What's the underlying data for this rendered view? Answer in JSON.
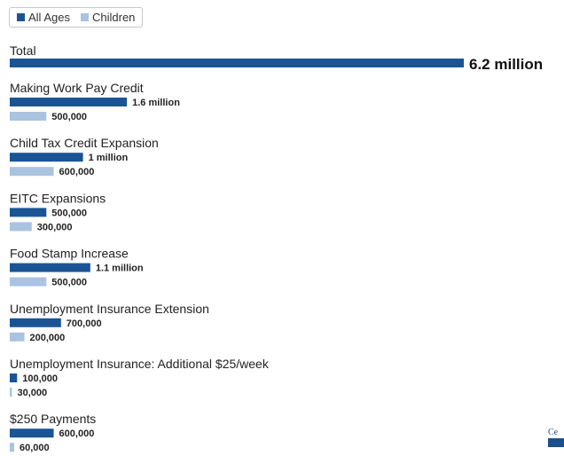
{
  "colors": {
    "all_ages": "#1a5494",
    "children": "#a9c3e1"
  },
  "legend": {
    "all_ages_label": "All Ages",
    "children_label": "Children"
  },
  "logo": {
    "text": "Ce"
  },
  "chart_data": {
    "type": "bar",
    "orientation": "horizontal",
    "title": "",
    "xlabel": "",
    "ylabel": "",
    "legend_placement": "top-left",
    "grid": false,
    "series": [
      {
        "name": "All Ages",
        "key": "all",
        "color": "#1a5494"
      },
      {
        "name": "Children",
        "key": "kids",
        "color": "#a9c3e1"
      }
    ],
    "total": {
      "category": "Total",
      "value": 6200000,
      "label": "6.2 million"
    },
    "categories": [
      {
        "name": "Making Work Pay Credit",
        "all": 1600000,
        "all_label": "1.6 million",
        "kids": 500000,
        "kids_label": "500,000"
      },
      {
        "name": "Child Tax Credit Expansion",
        "all": 1000000,
        "all_label": "1 million",
        "kids": 600000,
        "kids_label": "600,000"
      },
      {
        "name": "EITC Expansions",
        "all": 500000,
        "all_label": "500,000",
        "kids": 300000,
        "kids_label": "300,000"
      },
      {
        "name": "Food Stamp Increase",
        "all": 1100000,
        "all_label": "1.1 million",
        "kids": 500000,
        "kids_label": "500,000"
      },
      {
        "name": "Unemployment Insurance Extension",
        "all": 700000,
        "all_label": "700,000",
        "kids": 200000,
        "kids_label": "200,000"
      },
      {
        "name": "Unemployment Insurance: Additional $25/week",
        "all": 100000,
        "all_label": "100,000",
        "kids": 30000,
        "kids_label": "30,000"
      },
      {
        "name": "$250 Payments",
        "all": 600000,
        "all_label": "600,000",
        "kids": 60000,
        "kids_label": "60,000"
      }
    ]
  }
}
